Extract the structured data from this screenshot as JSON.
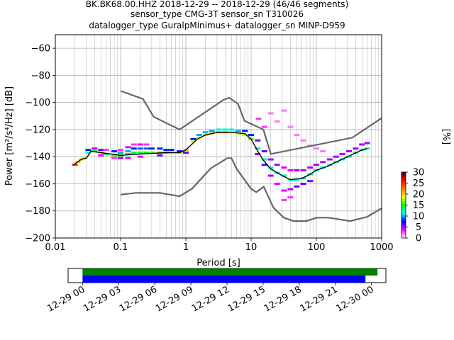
{
  "title_lines": [
    "BK.BK68.00.HHZ   2018-12-29 -- 2018-12-29  (46/46 segments)",
    "sensor_type CMG-3T sensor_sn T310026",
    "datalogger_type GuralpMinimus+ datalogger_sn MINP-D959"
  ],
  "chart_data": [
    {
      "type": "heatmap",
      "title": "BK.BK68.00.HHZ   2018-12-29 -- 2018-12-29  (46/46 segments)",
      "xlabel": "Period [s]",
      "ylabel": "Power [m²/s⁴/Hz] [dB]",
      "xscale": "log",
      "xlim": [
        0.01,
        1000
      ],
      "ylim": [
        -200,
        -50
      ],
      "x_ticks": [
        0.01,
        0.1,
        1,
        10,
        100,
        1000
      ],
      "x_tick_labels": [
        "0.01",
        "0.1",
        "1",
        "10",
        "100",
        "1000"
      ],
      "y_ticks": [
        -200,
        -180,
        -160,
        -140,
        -120,
        -100,
        -80,
        -60
      ],
      "y_tick_labels": [
        "−200",
        "−180",
        "−160",
        "−140",
        "−120",
        "−100",
        "−80",
        "−60"
      ],
      "grid": true,
      "colorbar": {
        "label": "[%]",
        "range": [
          0,
          30
        ],
        "ticks": [
          0,
          5,
          10,
          15,
          20,
          25,
          30
        ],
        "tick_labels": [
          "0",
          "5",
          "10",
          "15",
          "20",
          "25",
          "30"
        ],
        "colormap": [
          "#ffffff",
          "#ff00ff",
          "#0000ff",
          "#00ffff",
          "#00ff00",
          "#ffff00",
          "#ff8000",
          "#ff0000",
          "#400000"
        ]
      },
      "mode_line": {
        "color": "#000000",
        "points": [
          [
            0.019,
            -146
          ],
          [
            0.025,
            -142
          ],
          [
            0.03,
            -141
          ],
          [
            0.035,
            -136
          ],
          [
            0.05,
            -137
          ],
          [
            0.1,
            -139
          ],
          [
            0.2,
            -138
          ],
          [
            0.5,
            -137
          ],
          [
            0.8,
            -137
          ],
          [
            1.0,
            -135
          ],
          [
            1.5,
            -127
          ],
          [
            2.0,
            -124
          ],
          [
            3.0,
            -122
          ],
          [
            5.0,
            -122
          ],
          [
            8.0,
            -123
          ],
          [
            10.0,
            -127
          ],
          [
            12.0,
            -134
          ],
          [
            15.0,
            -142
          ],
          [
            20.0,
            -149
          ],
          [
            30.0,
            -154
          ],
          [
            40.0,
            -157
          ],
          [
            60.0,
            -156
          ],
          [
            80.0,
            -153
          ],
          [
            100.0,
            -150
          ],
          [
            150.0,
            -147
          ],
          [
            200.0,
            -144
          ],
          [
            300.0,
            -140
          ],
          [
            500.0,
            -135
          ],
          [
            600.0,
            -134
          ]
        ]
      },
      "noise_models": [
        {
          "name": "NHNM",
          "color": "#666666",
          "points": [
            [
              0.1,
              -91.5
            ],
            [
              0.22,
              -97.4
            ],
            [
              0.32,
              -110.5
            ],
            [
              0.8,
              -120
            ],
            [
              3.8,
              -98
            ],
            [
              4.6,
              -96.5
            ],
            [
              6.3,
              -101
            ],
            [
              7.9,
              -113.5
            ],
            [
              15.4,
              -120
            ],
            [
              20,
              -138
            ],
            [
              354,
              -126
            ],
            [
              1000,
              -111.5
            ]
          ]
        },
        {
          "name": "NLNM",
          "color": "#666666",
          "points": [
            [
              0.1,
              -168
            ],
            [
              0.17,
              -166.7
            ],
            [
              0.4,
              -166.7
            ],
            [
              0.8,
              -169.2
            ],
            [
              1.24,
              -163.7
            ],
            [
              2.4,
              -148.6
            ],
            [
              4.3,
              -141.1
            ],
            [
              5.0,
              -141.1
            ],
            [
              6.0,
              -149
            ],
            [
              10,
              -163.8
            ],
            [
              12,
              -166.2
            ],
            [
              15.6,
              -162.1
            ],
            [
              21.9,
              -177.5
            ],
            [
              31.6,
              -185
            ],
            [
              45,
              -187.5
            ],
            [
              70,
              -187.5
            ],
            [
              101,
              -185
            ],
            [
              154,
              -185
            ],
            [
              328,
              -187.5
            ],
            [
              600,
              -184.4
            ],
            [
              1000,
              -178
            ]
          ]
        }
      ],
      "percentile_cells": [
        [
          0.02,
          -146,
          25
        ],
        [
          0.022,
          -144,
          20
        ],
        [
          0.025,
          -142,
          20
        ],
        [
          0.028,
          -141,
          18
        ],
        [
          0.032,
          -137,
          12
        ],
        [
          0.032,
          -135,
          8
        ],
        [
          0.04,
          -136,
          15
        ],
        [
          0.04,
          -134,
          5
        ],
        [
          0.05,
          -137,
          18
        ],
        [
          0.05,
          -135,
          6
        ],
        [
          0.05,
          -139,
          4
        ],
        [
          0.06,
          -138,
          14
        ],
        [
          0.06,
          -135,
          3
        ],
        [
          0.08,
          -139,
          16
        ],
        [
          0.08,
          -136,
          8
        ],
        [
          0.08,
          -141,
          3
        ],
        [
          0.1,
          -139,
          15
        ],
        [
          0.1,
          -137,
          10
        ],
        [
          0.1,
          -141,
          5
        ],
        [
          0.1,
          -135,
          3
        ],
        [
          0.13,
          -138,
          15
        ],
        [
          0.13,
          -136,
          10
        ],
        [
          0.13,
          -133,
          4
        ],
        [
          0.13,
          -141,
          4
        ],
        [
          0.16,
          -137,
          14
        ],
        [
          0.16,
          -134,
          8
        ],
        [
          0.16,
          -131,
          3
        ],
        [
          0.2,
          -137,
          14
        ],
        [
          0.2,
          -134,
          9
        ],
        [
          0.2,
          -131,
          4
        ],
        [
          0.2,
          -140,
          4
        ],
        [
          0.25,
          -137,
          15
        ],
        [
          0.25,
          -134,
          9
        ],
        [
          0.25,
          -131,
          3
        ],
        [
          0.3,
          -137,
          16
        ],
        [
          0.3,
          -134,
          8
        ],
        [
          0.4,
          -137,
          16
        ],
        [
          0.4,
          -134,
          8
        ],
        [
          0.4,
          -139,
          6
        ],
        [
          0.5,
          -137,
          16
        ],
        [
          0.5,
          -135,
          8
        ],
        [
          0.6,
          -137,
          18
        ],
        [
          0.6,
          -135,
          8
        ],
        [
          0.8,
          -137,
          20
        ],
        [
          0.8,
          -136,
          8
        ],
        [
          1.0,
          -135,
          20
        ],
        [
          1.0,
          -137,
          6
        ],
        [
          1.3,
          -129,
          18
        ],
        [
          1.3,
          -127,
          8
        ],
        [
          1.6,
          -126,
          18
        ],
        [
          1.6,
          -124,
          10
        ],
        [
          2.0,
          -124,
          20
        ],
        [
          2.0,
          -122,
          10
        ],
        [
          2.5,
          -123,
          20
        ],
        [
          2.5,
          -121,
          10
        ],
        [
          3.2,
          -122,
          22
        ],
        [
          3.2,
          -120,
          12
        ],
        [
          4.0,
          -122,
          22
        ],
        [
          4.0,
          -120,
          12
        ],
        [
          5.0,
          -122,
          20
        ],
        [
          5.0,
          -120,
          12
        ],
        [
          6.3,
          -123,
          18
        ],
        [
          6.3,
          -121,
          10
        ],
        [
          8.0,
          -124,
          18
        ],
        [
          8.0,
          -121,
          8
        ],
        [
          10,
          -127,
          16
        ],
        [
          10,
          -124,
          8
        ],
        [
          12.6,
          -134,
          14
        ],
        [
          12.6,
          -128,
          6
        ],
        [
          12.6,
          -138,
          6
        ],
        [
          16,
          -142,
          12
        ],
        [
          16,
          -136,
          6
        ],
        [
          16,
          -146,
          6
        ],
        [
          20,
          -148,
          12
        ],
        [
          20,
          -142,
          5
        ],
        [
          20,
          -154,
          5
        ],
        [
          25,
          -152,
          12
        ],
        [
          25,
          -146,
          5
        ],
        [
          25,
          -160,
          4
        ],
        [
          32,
          -154,
          12
        ],
        [
          32,
          -148,
          4
        ],
        [
          32,
          -165,
          4
        ],
        [
          32,
          -172,
          3
        ],
        [
          40,
          -157,
          12
        ],
        [
          40,
          -150,
          4
        ],
        [
          40,
          -164,
          5
        ],
        [
          40,
          -170,
          3
        ],
        [
          50,
          -157,
          12
        ],
        [
          50,
          -150,
          5
        ],
        [
          50,
          -162,
          6
        ],
        [
          63,
          -156,
          12
        ],
        [
          63,
          -150,
          5
        ],
        [
          63,
          -160,
          6
        ],
        [
          80,
          -153,
          12
        ],
        [
          80,
          -148,
          5
        ],
        [
          80,
          -158,
          6
        ],
        [
          100,
          -150,
          12
        ],
        [
          100,
          -146,
          5
        ],
        [
          126,
          -148,
          12
        ],
        [
          126,
          -144,
          5
        ],
        [
          160,
          -146,
          12
        ],
        [
          160,
          -142,
          5
        ],
        [
          200,
          -144,
          12
        ],
        [
          200,
          -140,
          5
        ],
        [
          250,
          -142,
          12
        ],
        [
          250,
          -138,
          5
        ],
        [
          316,
          -140,
          12
        ],
        [
          316,
          -136,
          5
        ],
        [
          400,
          -137,
          12
        ],
        [
          400,
          -134,
          5
        ],
        [
          500,
          -135,
          12
        ],
        [
          500,
          -131,
          5
        ],
        [
          600,
          -134,
          12
        ],
        [
          600,
          -130,
          5
        ],
        [
          13,
          -112,
          3
        ],
        [
          16,
          -118,
          3
        ],
        [
          20,
          -108,
          2
        ],
        [
          25,
          -114,
          2
        ],
        [
          32,
          -106,
          2
        ],
        [
          40,
          -118,
          2
        ],
        [
          50,
          -124,
          2
        ],
        [
          63,
          -128,
          2
        ],
        [
          80,
          -132,
          2
        ],
        [
          100,
          -134,
          2
        ],
        [
          126,
          -136,
          2
        ]
      ]
    },
    {
      "type": "bar",
      "title": "",
      "xlabel": "",
      "ylabel": "",
      "x_tick_labels": [
        "12-29 00",
        "12-29 03",
        "12-29 06",
        "12-29 09",
        "12-29 12",
        "12-29 15",
        "12-29 18",
        "12-29 21",
        "12-30 00"
      ],
      "x_tick_hours": [
        0,
        3,
        6,
        9,
        12,
        15,
        18,
        21,
        24
      ],
      "xlim_hours": [
        -1.2,
        25.2
      ],
      "series": [
        {
          "color": "#008000",
          "start_hour": 0,
          "end_hour": 24.5
        },
        {
          "color": "#0000ff",
          "start_hour": 0,
          "end_hour": 23.5
        }
      ]
    }
  ]
}
